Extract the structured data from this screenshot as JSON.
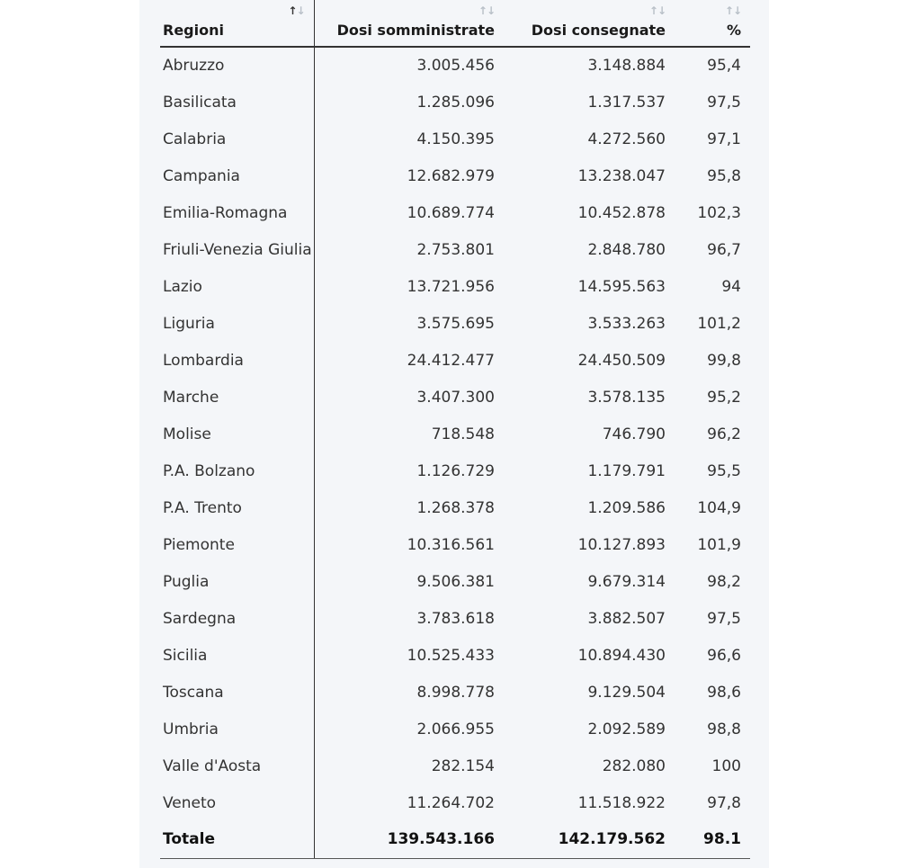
{
  "table": {
    "headers": {
      "region": "Regioni",
      "administered": "Dosi somministrate",
      "delivered": "Dosi consegnate",
      "percent": "%"
    },
    "sort_icon_up": "↑",
    "sort_icon_down": "↓",
    "active_sort_column": "region",
    "rows": [
      {
        "region": "Abruzzo",
        "administered": "3.005.456",
        "delivered": "3.148.884",
        "percent": "95,4"
      },
      {
        "region": "Basilicata",
        "administered": "1.285.096",
        "delivered": "1.317.537",
        "percent": "97,5"
      },
      {
        "region": "Calabria",
        "administered": "4.150.395",
        "delivered": "4.272.560",
        "percent": "97,1"
      },
      {
        "region": "Campania",
        "administered": "12.682.979",
        "delivered": "13.238.047",
        "percent": "95,8"
      },
      {
        "region": "Emilia-Romagna",
        "administered": "10.689.774",
        "delivered": "10.452.878",
        "percent": "102,3"
      },
      {
        "region": "Friuli-Venezia Giulia",
        "administered": "2.753.801",
        "delivered": "2.848.780",
        "percent": "96,7"
      },
      {
        "region": "Lazio",
        "administered": "13.721.956",
        "delivered": "14.595.563",
        "percent": "94"
      },
      {
        "region": "Liguria",
        "administered": "3.575.695",
        "delivered": "3.533.263",
        "percent": "101,2"
      },
      {
        "region": "Lombardia",
        "administered": "24.412.477",
        "delivered": "24.450.509",
        "percent": "99,8"
      },
      {
        "region": "Marche",
        "administered": "3.407.300",
        "delivered": "3.578.135",
        "percent": "95,2"
      },
      {
        "region": "Molise",
        "administered": "718.548",
        "delivered": "746.790",
        "percent": "96,2"
      },
      {
        "region": "P.A. Bolzano",
        "administered": "1.126.729",
        "delivered": "1.179.791",
        "percent": "95,5"
      },
      {
        "region": "P.A. Trento",
        "administered": "1.268.378",
        "delivered": "1.209.586",
        "percent": "104,9"
      },
      {
        "region": "Piemonte",
        "administered": "10.316.561",
        "delivered": "10.127.893",
        "percent": "101,9"
      },
      {
        "region": "Puglia",
        "administered": "9.506.381",
        "delivered": "9.679.314",
        "percent": "98,2"
      },
      {
        "region": "Sardegna",
        "administered": "3.783.618",
        "delivered": "3.882.507",
        "percent": "97,5"
      },
      {
        "region": "Sicilia",
        "administered": "10.525.433",
        "delivered": "10.894.430",
        "percent": "96,6"
      },
      {
        "region": "Toscana",
        "administered": "8.998.778",
        "delivered": "9.129.504",
        "percent": "98,6"
      },
      {
        "region": "Umbria",
        "administered": "2.066.955",
        "delivered": "2.092.589",
        "percent": "98,8"
      },
      {
        "region": "Valle d'Aosta",
        "administered": "282.154",
        "delivered": "282.080",
        "percent": "100"
      },
      {
        "region": "Veneto",
        "administered": "11.264.702",
        "delivered": "11.518.922",
        "percent": "97,8"
      }
    ],
    "total": {
      "region": "Totale",
      "administered": "139.543.166",
      "delivered": "142.179.562",
      "percent": "98.1"
    }
  }
}
